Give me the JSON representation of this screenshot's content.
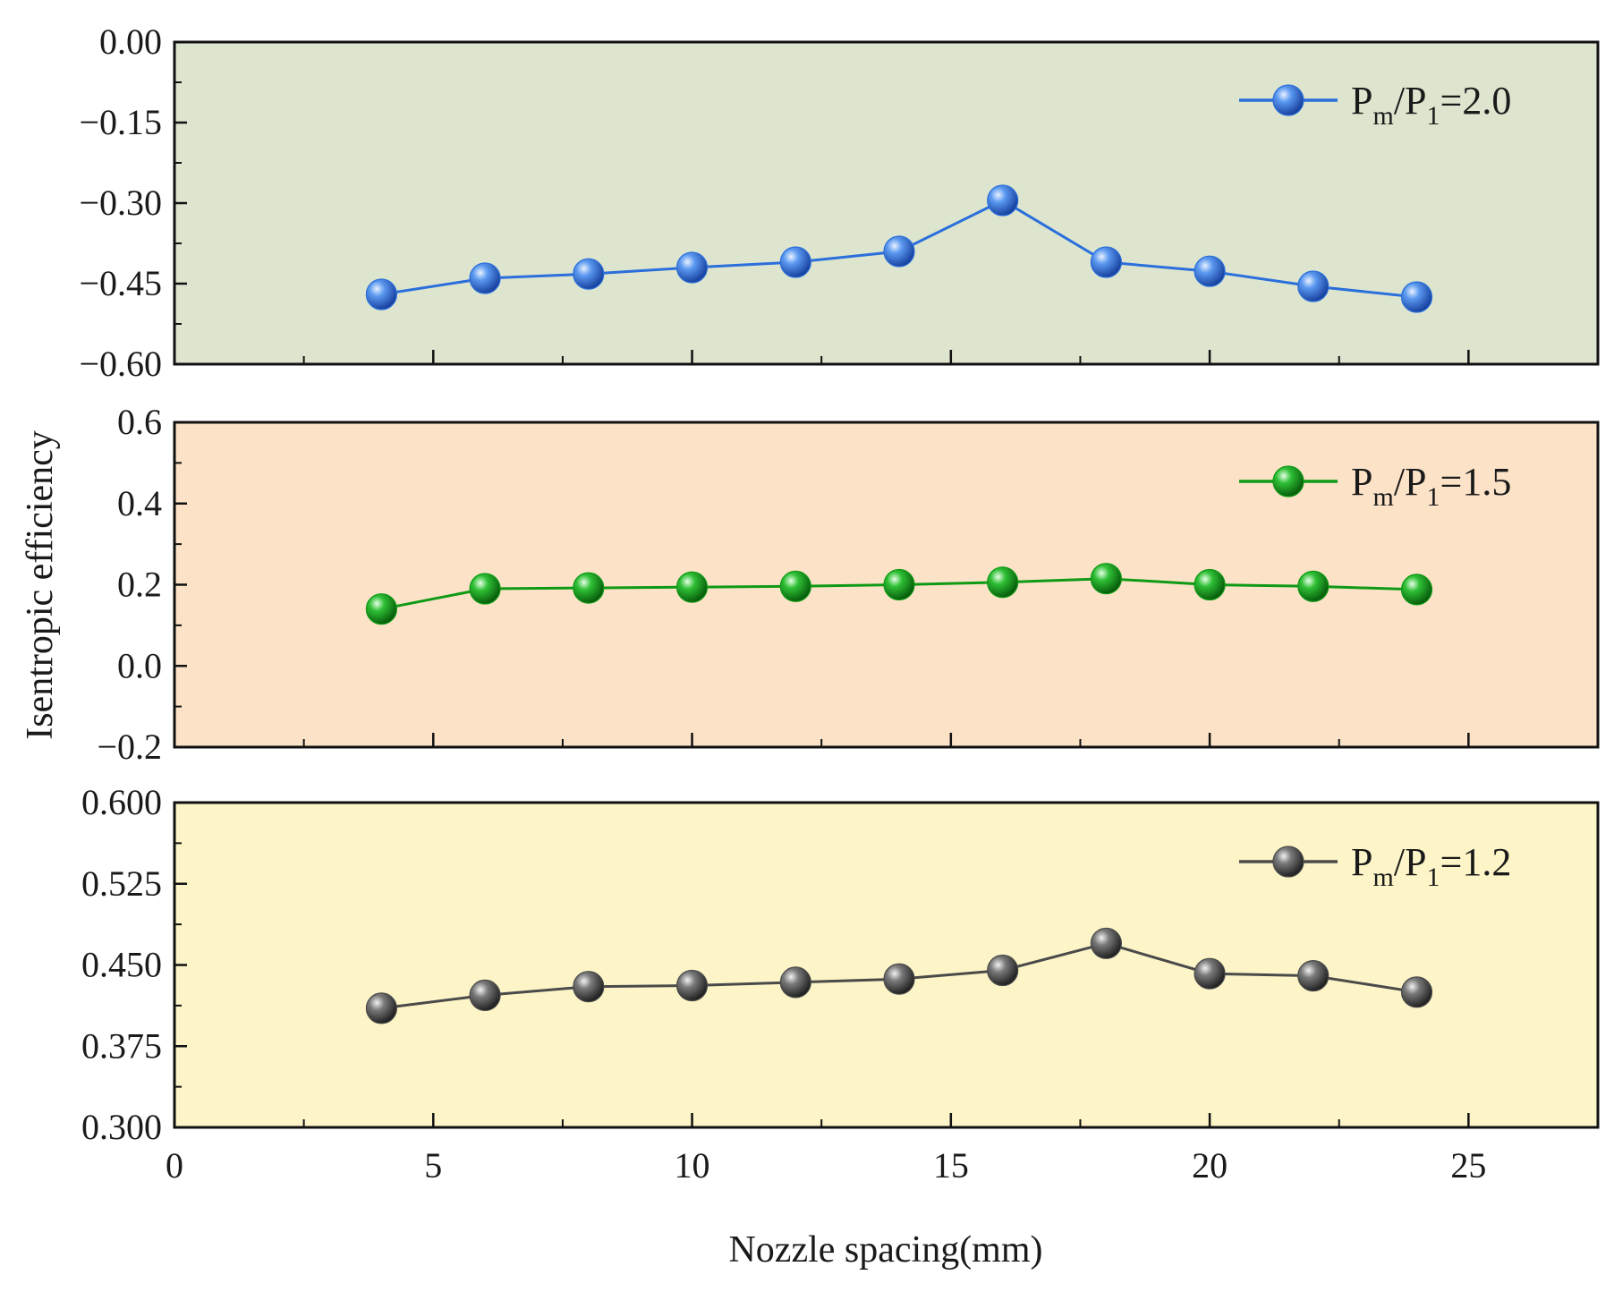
{
  "chart_data": {
    "type": "line",
    "xlabel": "Nozzle spacing(mm)",
    "ylabel": "Isentropic efficiency",
    "xlim": [
      0,
      27.5
    ],
    "x_ticks": [
      0,
      5,
      10,
      15,
      20,
      25
    ],
    "x_tick_labels": [
      "0",
      "5",
      "10",
      "15",
      "20",
      "25"
    ],
    "x": [
      4,
      6,
      8,
      10,
      12,
      14,
      16,
      18,
      20,
      22,
      24
    ],
    "panels": [
      {
        "id": "pr20",
        "background": "#dde5cf",
        "ylim": [
          -0.6,
          0.0
        ],
        "y_ticks": [
          0.0,
          -0.15,
          -0.3,
          -0.45,
          -0.6
        ],
        "y_tick_labels": [
          "0.00",
          "−0.15",
          "−0.30",
          "−0.45",
          "−0.60"
        ],
        "series": [
          {
            "name": "Pm/P1=2.0",
            "legend": {
              "pre": "P",
              "sub1": "m",
              "mid": "/P",
              "sub2": "1",
              "post": "=2.0"
            },
            "color": "#2a6fdb",
            "values": [
              -0.47,
              -0.44,
              -0.432,
              -0.42,
              -0.41,
              -0.39,
              -0.295,
              -0.41,
              -0.427,
              -0.455,
              -0.475
            ]
          }
        ]
      },
      {
        "id": "pr15",
        "background": "#fce3c8",
        "ylim": [
          -0.2,
          0.6
        ],
        "y_ticks": [
          0.6,
          0.4,
          0.2,
          0.0,
          -0.2
        ],
        "y_tick_labels": [
          "0.6",
          "0.4",
          "0.2",
          "0.0",
          "−0.2"
        ],
        "series": [
          {
            "name": "Pm/P1=1.5",
            "legend": {
              "pre": "P",
              "sub1": "m",
              "mid": "/P",
              "sub2": "1",
              "post": "=1.5"
            },
            "color": "#0e9a14",
            "values": [
              0.14,
              0.19,
              0.192,
              0.194,
              0.196,
              0.2,
              0.206,
              0.215,
              0.2,
              0.196,
              0.188
            ]
          }
        ]
      },
      {
        "id": "pr12",
        "background": "#fdf5c8",
        "ylim": [
          0.3,
          0.6
        ],
        "y_ticks": [
          0.6,
          0.525,
          0.45,
          0.375,
          0.3
        ],
        "y_tick_labels": [
          "0.600",
          "0.525",
          "0.450",
          "0.375",
          "0.300"
        ],
        "series": [
          {
            "name": "Pm/P1=1.2",
            "legend": {
              "pre": "P",
              "sub1": "m",
              "mid": "/P",
              "sub2": "1",
              "post": "=1.2"
            },
            "color": "#4a4a4a",
            "values": [
              0.41,
              0.422,
              0.43,
              0.431,
              0.434,
              0.437,
              0.445,
              0.47,
              0.442,
              0.44,
              0.425
            ]
          }
        ]
      }
    ]
  }
}
